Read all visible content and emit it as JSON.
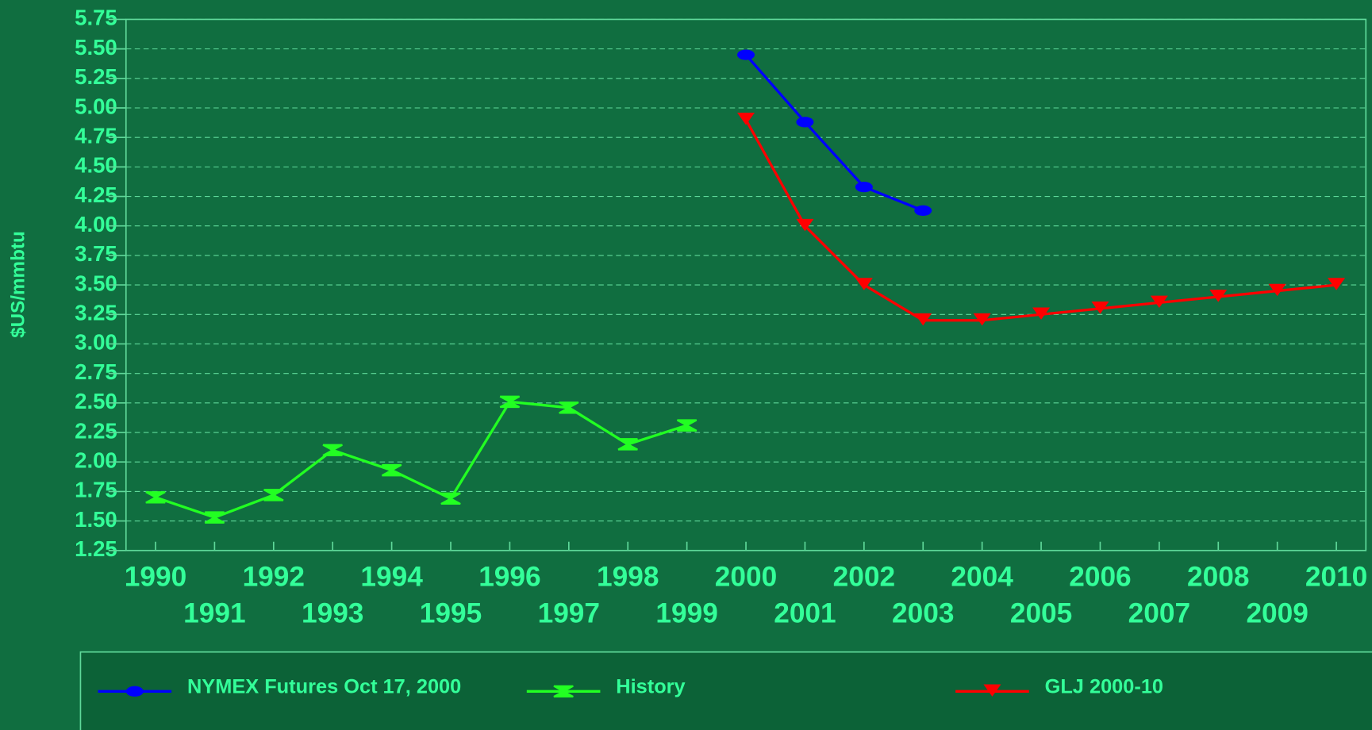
{
  "chart_data": {
    "type": "line",
    "y_label": "$US/mmbtu",
    "x": [
      1990,
      1991,
      1992,
      1993,
      1994,
      1995,
      1996,
      1997,
      1998,
      1999,
      2000,
      2001,
      2002,
      2003,
      2004,
      2005,
      2006,
      2007,
      2008,
      2009,
      2010
    ],
    "xlim": [
      1989.5,
      2010.5
    ],
    "xticks": [
      1990,
      1991,
      1992,
      1993,
      1994,
      1995,
      1996,
      1997,
      1998,
      1999,
      2000,
      2001,
      2002,
      2003,
      2004,
      2005,
      2006,
      2007,
      2008,
      2009,
      2010
    ],
    "ylim": [
      1.25,
      5.75
    ],
    "yticks": [
      {
        "value": 1.25,
        "label": "1.25"
      },
      {
        "value": 1.5,
        "label": "1.50"
      },
      {
        "value": 1.75,
        "label": "1.75"
      },
      {
        "value": 2,
        "label": "2.00"
      },
      {
        "value": 2.25,
        "label": "2.25"
      },
      {
        "value": 2.5,
        "label": "2.50"
      },
      {
        "value": 2.75,
        "label": "2.75"
      },
      {
        "value": 3,
        "label": "3.00"
      },
      {
        "value": 3.25,
        "label": "3.25"
      },
      {
        "value": 3.5,
        "label": "3.50"
      },
      {
        "value": 3.75,
        "label": "3.75"
      },
      {
        "value": 4,
        "label": "4.00"
      },
      {
        "value": 4.25,
        "label": "4.25"
      },
      {
        "value": 4.5,
        "label": "4.50"
      },
      {
        "value": 4.75,
        "label": "4.75"
      },
      {
        "value": 5,
        "label": "5.00"
      },
      {
        "value": 5.25,
        "label": "5.25"
      },
      {
        "value": 5.5,
        "label": "5.50"
      },
      {
        "value": 5.75,
        "label": "5.75"
      }
    ],
    "grid": true,
    "legend": "bottom",
    "series": [
      {
        "name": "NYMEX Futures Oct 17, 2000",
        "color": "#0000ff",
        "marker": "circle",
        "values": [
          null,
          null,
          null,
          null,
          null,
          null,
          null,
          null,
          null,
          null,
          5.45,
          4.88,
          4.33,
          4.13,
          null,
          null,
          null,
          null,
          null,
          null,
          null
        ]
      },
      {
        "name": "History",
        "color": "#22ff22",
        "marker": "bowtie",
        "values": [
          1.7,
          1.53,
          1.72,
          2.1,
          1.93,
          1.69,
          2.51,
          2.46,
          2.15,
          2.31,
          null,
          null,
          null,
          null,
          null,
          null,
          null,
          null,
          null,
          null,
          null
        ]
      },
      {
        "name": "GLJ 2000-10",
        "color": "#ff0000",
        "marker": "triangle-down",
        "values": [
          null,
          null,
          null,
          null,
          null,
          null,
          null,
          null,
          null,
          null,
          4.9,
          4.0,
          3.5,
          3.2,
          3.2,
          3.25,
          3.3,
          3.35,
          3.4,
          3.45,
          3.5
        ]
      }
    ]
  }
}
